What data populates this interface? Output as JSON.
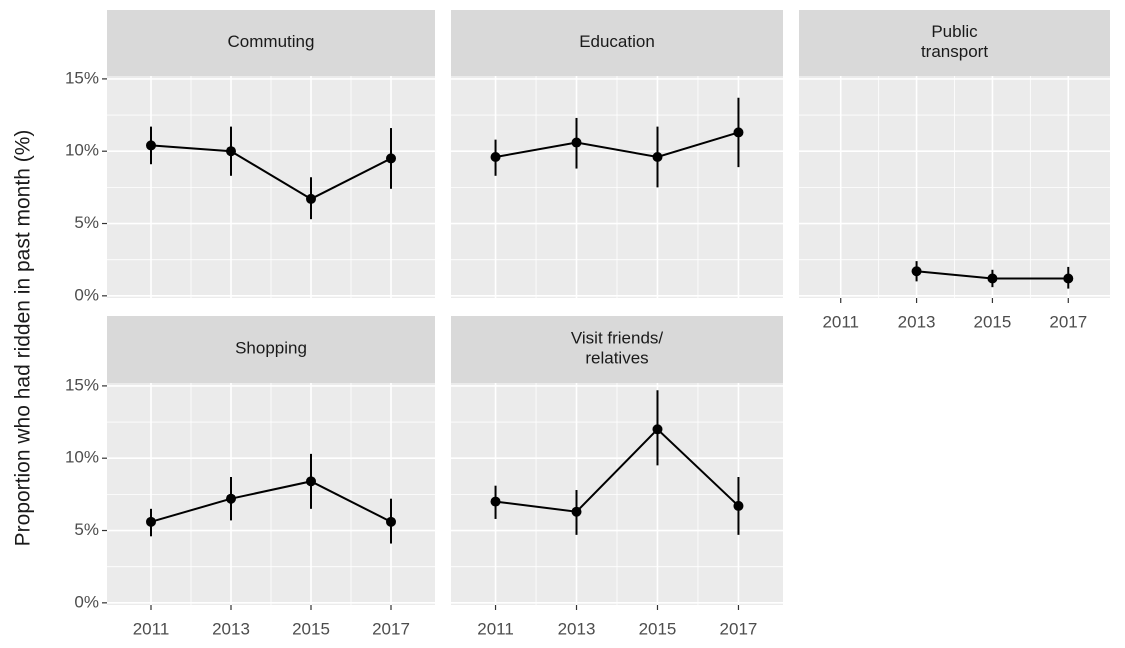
{
  "chart_data": {
    "type": "line",
    "ylabel": "Proportion who had ridden in past month (%)",
    "xlim": [
      2009.9,
      2018.1
    ],
    "xticks": [
      2011,
      2013,
      2015,
      2017
    ],
    "ylim": [
      -0.15,
      15.2
    ],
    "yticks": [
      {
        "value": 0,
        "label": "0%"
      },
      {
        "value": 5,
        "label": "5%"
      },
      {
        "value": 10,
        "label": "10%"
      },
      {
        "value": 15,
        "label": "15%"
      }
    ],
    "grid": true,
    "minor_grid": true,
    "color": "#000000",
    "x": [
      2011,
      2013,
      2015,
      2017
    ],
    "panels": [
      {
        "title": "Commuting",
        "values": [
          10.4,
          10.0,
          6.7,
          9.5
        ],
        "lower": [
          9.1,
          8.3,
          5.3,
          7.4
        ],
        "upper": [
          11.7,
          11.7,
          8.2,
          11.6
        ]
      },
      {
        "title": "Education",
        "values": [
          9.6,
          10.6,
          9.6,
          11.3
        ],
        "lower": [
          8.3,
          8.8,
          7.5,
          8.9
        ],
        "upper": [
          10.8,
          12.3,
          11.7,
          13.7
        ]
      },
      {
        "title": "Public\ntransport",
        "values": [
          null,
          1.7,
          1.2,
          1.2
        ],
        "lower": [
          null,
          1.0,
          0.6,
          0.5
        ],
        "upper": [
          null,
          2.4,
          1.8,
          2.0
        ]
      },
      {
        "title": "Shopping",
        "values": [
          5.6,
          7.2,
          8.4,
          5.6
        ],
        "lower": [
          4.6,
          5.7,
          6.5,
          4.1
        ],
        "upper": [
          6.5,
          8.7,
          10.3,
          7.2
        ]
      },
      {
        "title": "Visit friends/\nrelatives",
        "values": [
          7.0,
          6.3,
          12.0,
          6.7
        ],
        "lower": [
          5.8,
          4.7,
          9.5,
          4.7
        ],
        "upper": [
          8.1,
          7.8,
          14.7,
          8.7
        ]
      }
    ]
  }
}
